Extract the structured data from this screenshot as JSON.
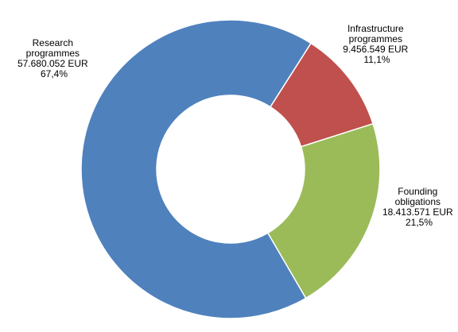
{
  "chart_data": {
    "type": "pie",
    "variant": "donut",
    "title": "",
    "legend": "none",
    "slices": [
      {
        "name": "Infrastructure programmes",
        "label_lines": [
          "Infrastructure",
          "programmes",
          "9.456.549 EUR",
          "11,1%"
        ],
        "value": 9456549,
        "percent": 11.1,
        "color": "#C0504D"
      },
      {
        "name": "Founding obligations",
        "label_lines": [
          "Founding",
          "obligations",
          "18.413.571 EUR",
          "21,5%"
        ],
        "value": 18413571,
        "percent": 21.5,
        "color": "#9BBB59"
      },
      {
        "name": "Research programmes",
        "label_lines": [
          "Research",
          "programmes",
          "57.680.052 EUR",
          "67,4%"
        ],
        "value": 57680052,
        "percent": 67.4,
        "color": "#4F81BD"
      }
    ]
  }
}
